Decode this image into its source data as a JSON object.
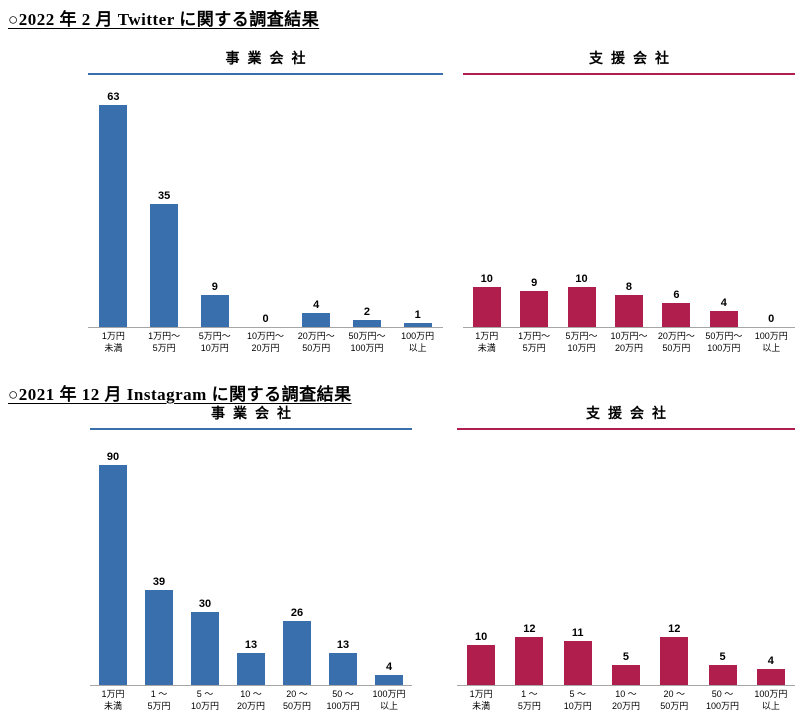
{
  "headings": {
    "twitter": "○2022 年 2 月 Twitter に関する調査結果",
    "instagram": "○2021 年 12 月 Instagram に関する調査結果"
  },
  "colors": {
    "business_blue": "#3a6fad",
    "support_crimson": "#b01e4e"
  },
  "chart_data": [
    {
      "type": "bar",
      "section": "2022年2月 Twitter に関する調査結果",
      "title": "事業会社",
      "color": "#3a6fad",
      "categories": [
        "1万円\n未満",
        "1万円～\n5万円",
        "5万円～\n10万円",
        "10万円～\n20万円",
        "20万円～\n50万円",
        "50万円～\n100万円",
        "100万円\n以上"
      ],
      "values": [
        63,
        35,
        9,
        0,
        4,
        2,
        1
      ],
      "xlabel": "",
      "ylabel": "",
      "ylim": [
        0,
        63
      ],
      "grid": false,
      "legend": "none",
      "data_labels": true
    },
    {
      "type": "bar",
      "section": "2022年2月 Twitter に関する調査結果",
      "title": "支援会社",
      "color": "#b01e4e",
      "categories": [
        "1万円\n未満",
        "1万円～\n5万円",
        "5万円～\n10万円",
        "10万円～\n20万円",
        "20万円～\n50万円",
        "50万円～\n100万円",
        "100万円\n以上"
      ],
      "values": [
        10,
        9,
        10,
        8,
        6,
        4,
        0
      ],
      "xlabel": "",
      "ylabel": "",
      "ylim": [
        0,
        10
      ],
      "grid": false,
      "legend": "none",
      "data_labels": true
    },
    {
      "type": "bar",
      "section": "2021年12月 Instagram に関する調査結果",
      "title": "事業会社",
      "color": "#3a6fad",
      "categories": [
        "1万円\n未満",
        "1 ～\n5万円",
        "5 ～\n10万円",
        "10 ～\n20万円",
        "20 ～\n50万円",
        "50 ～\n100万円",
        "100万円\n以上"
      ],
      "values": [
        90,
        39,
        30,
        13,
        26,
        13,
        4
      ],
      "xlabel": "",
      "ylabel": "",
      "ylim": [
        0,
        90
      ],
      "grid": false,
      "legend": "none",
      "data_labels": true
    },
    {
      "type": "bar",
      "section": "2021年12月 Instagram に関する調査結果",
      "title": "支援会社",
      "color": "#b01e4e",
      "categories": [
        "1万円\n未満",
        "1 ～\n5万円",
        "5 ～\n10万円",
        "10 ～\n20万円",
        "20 ～\n50万円",
        "50 ～\n100万円",
        "100万円\n以上"
      ],
      "values": [
        10,
        12,
        11,
        5,
        12,
        5,
        4
      ],
      "xlabel": "",
      "ylabel": "",
      "ylim": [
        0,
        12
      ],
      "grid": false,
      "legend": "none",
      "data_labels": true
    }
  ]
}
